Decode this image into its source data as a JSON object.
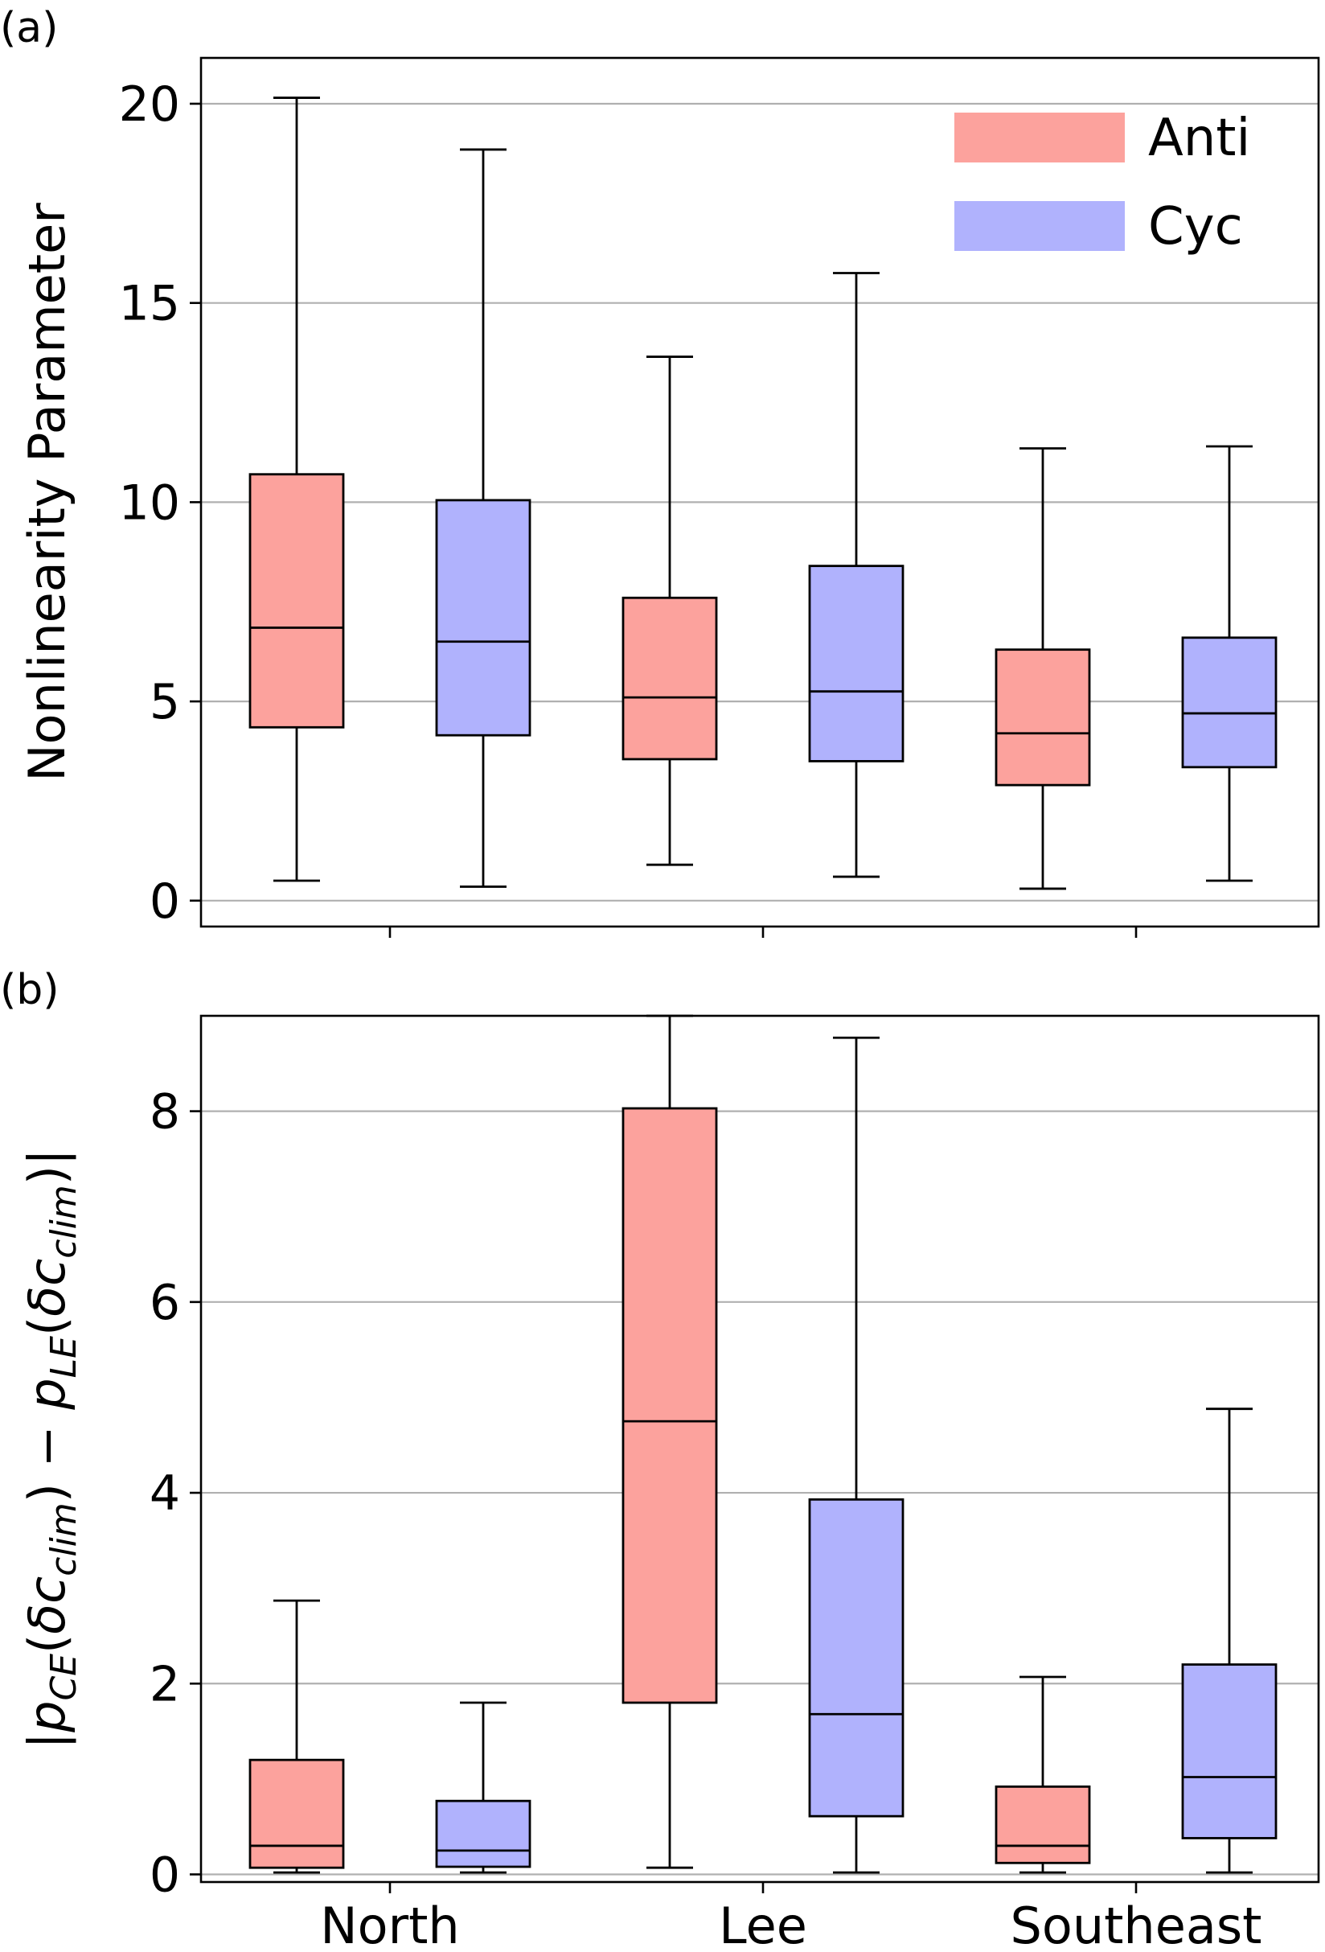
{
  "figure": {
    "categories": [
      "North",
      "Lee",
      "Southeast"
    ],
    "colors": {
      "anti": "#fca29d",
      "cyc": "#b0b2fd",
      "grid": "#b0b0b0"
    }
  },
  "chart_data": [
    {
      "type": "box",
      "panel_label": "(a)",
      "ylabel": "Nonlinearity Parameter",
      "ylim": [
        -0.65,
        21.15
      ],
      "yticks": [
        0,
        5,
        10,
        15,
        20
      ],
      "grid": "horizontal",
      "legend": {
        "position": "top-right",
        "entries": [
          {
            "name": "Anti",
            "color": "#fca29d"
          },
          {
            "name": "Cyc",
            "color": "#b0b2fd"
          }
        ]
      },
      "series": [
        {
          "name": "Anti",
          "color": "#fca29d",
          "boxes": [
            {
              "category": "North",
              "whislo": 0.5,
              "q1": 4.35,
              "med": 6.85,
              "q3": 10.7,
              "whishi": 20.15
            },
            {
              "category": "Lee",
              "whislo": 0.9,
              "q1": 3.55,
              "med": 5.1,
              "q3": 7.6,
              "whishi": 13.65
            },
            {
              "category": "Southeast",
              "whislo": 0.3,
              "q1": 2.9,
              "med": 4.2,
              "q3": 6.3,
              "whishi": 11.35
            }
          ]
        },
        {
          "name": "Cyc",
          "color": "#b0b2fd",
          "boxes": [
            {
              "category": "North",
              "whislo": 0.35,
              "q1": 4.15,
              "med": 6.5,
              "q3": 10.05,
              "whishi": 18.85
            },
            {
              "category": "Lee",
              "whislo": 0.6,
              "q1": 3.5,
              "med": 5.25,
              "q3": 8.4,
              "whishi": 15.75
            },
            {
              "category": "Southeast",
              "whislo": 0.5,
              "q1": 3.35,
              "med": 4.7,
              "q3": 6.6,
              "whishi": 11.4
            }
          ]
        }
      ]
    },
    {
      "type": "box",
      "panel_label": "(b)",
      "ylabel": "|pCE(δcclim) − pLE(δcclim)|",
      "ylabel_parts": [
        "|",
        "p",
        "CE",
        "(",
        "δc",
        "clim",
        ") − ",
        "p",
        "LE",
        "(",
        "δc",
        "clim",
        ")|"
      ],
      "ylim": [
        -0.08,
        9.0
      ],
      "yticks": [
        0,
        2,
        4,
        6,
        8
      ],
      "xlabels": [
        "North",
        "Lee",
        "Southeast"
      ],
      "grid": "horizontal",
      "series": [
        {
          "name": "Anti",
          "color": "#fca29d",
          "boxes": [
            {
              "category": "North",
              "whislo": 0.02,
              "q1": 0.07,
              "med": 0.3,
              "q3": 1.2,
              "whishi": 2.87
            },
            {
              "category": "Lee",
              "whislo": 0.07,
              "q1": 1.8,
              "med": 4.75,
              "q3": 8.03,
              "whishi": 9.0
            },
            {
              "category": "Southeast",
              "whislo": 0.02,
              "q1": 0.12,
              "med": 0.3,
              "q3": 0.92,
              "whishi": 2.07
            }
          ]
        },
        {
          "name": "Cyc",
          "color": "#b0b2fd",
          "boxes": [
            {
              "category": "North",
              "whislo": 0.02,
              "q1": 0.08,
              "med": 0.25,
              "q3": 0.77,
              "whishi": 1.8
            },
            {
              "category": "Lee",
              "whislo": 0.02,
              "q1": 0.61,
              "med": 1.68,
              "q3": 3.93,
              "whishi": 8.77
            },
            {
              "category": "Southeast",
              "whislo": 0.02,
              "q1": 0.38,
              "med": 1.02,
              "q3": 2.2,
              "whishi": 4.88
            }
          ]
        }
      ]
    }
  ]
}
